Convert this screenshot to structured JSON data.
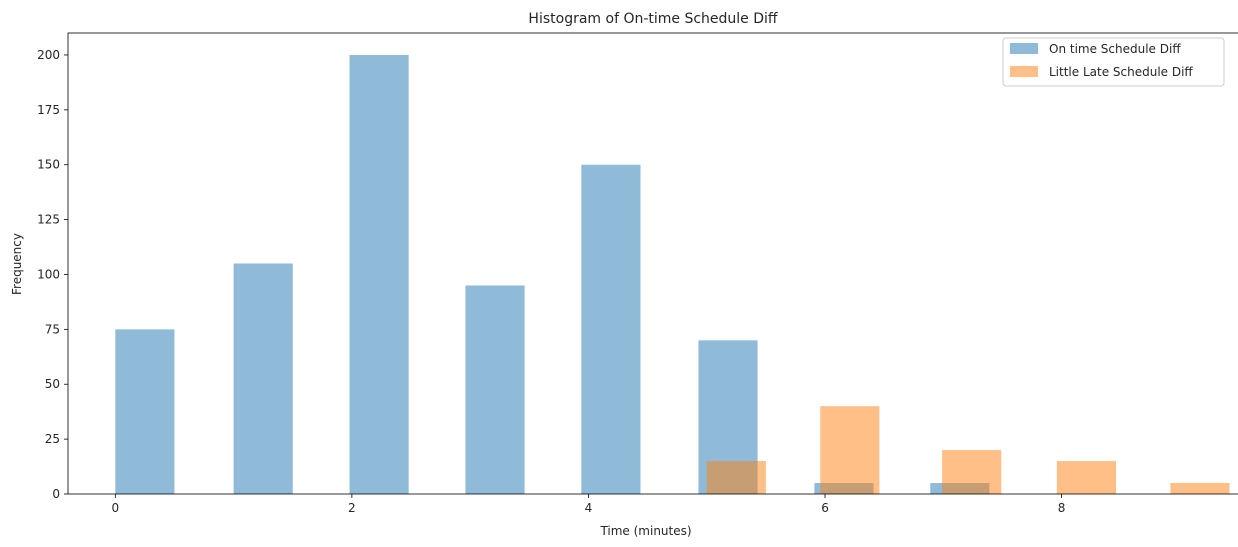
{
  "chart_data": {
    "type": "histogram",
    "title": "Histogram of On-time Schedule Diff",
    "xlabel": "Time (minutes)",
    "ylabel": "Frequency",
    "xlim": [
      -0.4,
      9.5
    ],
    "ylim": [
      0,
      210
    ],
    "xticks": [
      0,
      2,
      4,
      6,
      8
    ],
    "yticks": [
      0,
      25,
      50,
      75,
      100,
      125,
      150,
      175,
      200
    ],
    "legend_location": "top-right",
    "series": [
      {
        "name": "On time Schedule Diff",
        "color": "#1f77b4",
        "opacity": 0.5,
        "bins": [
          {
            "start": 0.0,
            "end": 0.5,
            "value": 75
          },
          {
            "start": 1.0,
            "end": 1.5,
            "value": 105
          },
          {
            "start": 1.98,
            "end": 2.48,
            "value": 200
          },
          {
            "start": 2.96,
            "end": 3.46,
            "value": 95
          },
          {
            "start": 3.94,
            "end": 4.44,
            "value": 150
          },
          {
            "start": 4.93,
            "end": 5.43,
            "value": 70
          },
          {
            "start": 5.91,
            "end": 6.41,
            "value": 5
          },
          {
            "start": 6.89,
            "end": 7.39,
            "value": 5
          }
        ]
      },
      {
        "name": "Little Late Schedule Diff",
        "color": "#ff7f0e",
        "opacity": 0.5,
        "bins": [
          {
            "start": 5.0,
            "end": 5.5,
            "value": 15
          },
          {
            "start": 5.96,
            "end": 6.46,
            "value": 40
          },
          {
            "start": 6.99,
            "end": 7.49,
            "value": 20
          },
          {
            "start": 7.96,
            "end": 8.46,
            "value": 15
          },
          {
            "start": 8.92,
            "end": 9.42,
            "value": 5
          }
        ]
      }
    ]
  }
}
